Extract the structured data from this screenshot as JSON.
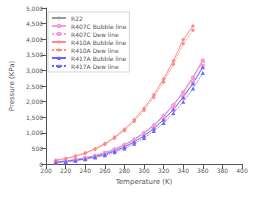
{
  "chart_data": {
    "type": "line",
    "xlabel": "Temperature (K)",
    "ylabel": "Pressure (KPa)",
    "xlim": [
      200,
      400
    ],
    "ylim": [
      0,
      5000
    ],
    "xticks": [
      200,
      220,
      240,
      260,
      280,
      300,
      320,
      340,
      360,
      380,
      400
    ],
    "yticks": [
      0,
      500,
      1000,
      1500,
      2000,
      2500,
      3000,
      3500,
      4000,
      4500,
      5000
    ],
    "grid": false,
    "legend": "upper left",
    "series": [
      {
        "name": "R22",
        "color": "#999999",
        "marker": "plus",
        "line_style": "solid",
        "x": [
          210,
          220,
          230,
          240,
          250,
          260,
          270,
          280,
          290,
          300,
          310,
          320,
          330,
          340,
          350,
          360
        ],
        "values": [
          68,
          100,
          143,
          200,
          273,
          365,
          480,
          622,
          795,
          1004,
          1255,
          1552,
          1901,
          2310,
          2784,
          3332
        ]
      },
      {
        "name": "R407C Bubble line",
        "color": "#ff99dd",
        "marker": "square",
        "line_style": "solid",
        "x": [
          210,
          220,
          230,
          240,
          250,
          260,
          270,
          280,
          290,
          300,
          310,
          320,
          330,
          340,
          350,
          360
        ],
        "values": [
          62,
          92,
          133,
          187,
          257,
          346,
          459,
          599,
          771,
          979,
          1228,
          1524,
          1872,
          2280,
          2753,
          3299
        ]
      },
      {
        "name": "R407C Dew line",
        "color": "#ff99dd",
        "marker": "square",
        "line_style": "dotted",
        "x": [
          210,
          220,
          230,
          240,
          250,
          260,
          270,
          280,
          290,
          300,
          310,
          320,
          330,
          340,
          350,
          360
        ],
        "values": [
          55,
          82,
          119,
          169,
          233,
          315,
          420,
          551,
          713,
          909,
          1145,
          1427,
          1762,
          2155,
          2614,
          3145
        ]
      },
      {
        "name": "R410A Bubble line",
        "color": "#ff8888",
        "marker": "diamond",
        "line_style": "solid",
        "x": [
          210,
          220,
          230,
          240,
          250,
          260,
          270,
          280,
          290,
          300,
          310,
          320,
          330,
          340,
          350
        ],
        "values": [
          120,
          178,
          255,
          357,
          489,
          655,
          862,
          1115,
          1421,
          1786,
          2217,
          2722,
          3310,
          3990,
          4420
        ]
      },
      {
        "name": "R410A Dew line",
        "color": "#ff8888",
        "marker": "diamond",
        "line_style": "dotted",
        "x": [
          210,
          220,
          230,
          240,
          250,
          260,
          270,
          280,
          290,
          300,
          310,
          320,
          330,
          340,
          350
        ],
        "values": [
          113,
          168,
          241,
          338,
          463,
          622,
          822,
          1067,
          1363,
          1716,
          2134,
          2624,
          3194,
          3851,
          4290
        ]
      },
      {
        "name": "R417A Bubble line",
        "color": "#6666ff",
        "marker": "triangle",
        "line_style": "solid",
        "x": [
          210,
          220,
          230,
          240,
          250,
          260,
          270,
          280,
          290,
          300,
          310,
          320,
          330,
          340,
          350,
          360
        ],
        "values": [
          55,
          82,
          119,
          169,
          233,
          314,
          418,
          549,
          710,
          905,
          1139,
          1418,
          1748,
          2135,
          2584,
          3103
        ]
      },
      {
        "name": "R417A Dew line",
        "color": "#6666ff",
        "marker": "triangle",
        "line_style": "dotted",
        "x": [
          210,
          220,
          230,
          240,
          250,
          260,
          270,
          280,
          290,
          300,
          310,
          320,
          330,
          340,
          350,
          360
        ],
        "values": [
          48,
          72,
          105,
          150,
          208,
          283,
          379,
          500,
          651,
          834,
          1054,
          1317,
          1629,
          1996,
          2422,
          2915
        ]
      }
    ]
  }
}
